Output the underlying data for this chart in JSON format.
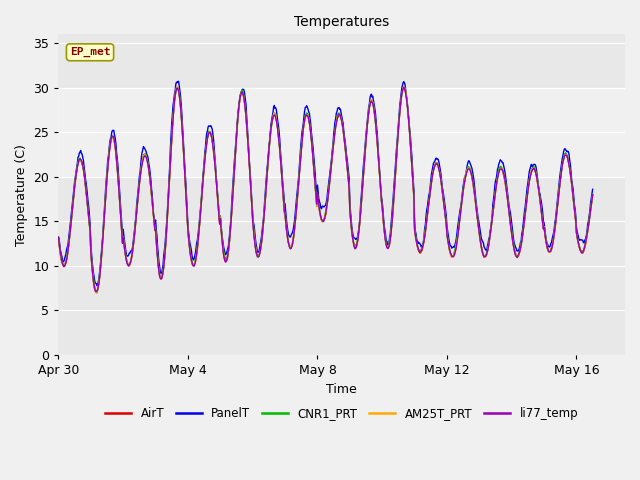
{
  "title": "Temperatures",
  "xlabel": "Time",
  "ylabel": "Temperature (C)",
  "ylim": [
    0,
    36
  ],
  "yticks": [
    0,
    5,
    10,
    15,
    20,
    25,
    30,
    35
  ],
  "fig_facecolor": "#f0f0f0",
  "ax_facecolor": "#e8e8e8",
  "series": {
    "AirT": {
      "color": "#dd0000",
      "lw": 1.0
    },
    "PanelT": {
      "color": "#0000ee",
      "lw": 1.0
    },
    "CNR1_PRT": {
      "color": "#00bb00",
      "lw": 1.0
    },
    "AM25T_PRT": {
      "color": "#ffaa00",
      "lw": 1.0
    },
    "li77_temp": {
      "color": "#9900bb",
      "lw": 1.0
    }
  },
  "annotation": {
    "text": "EP_met",
    "fontsize": 8,
    "color": "#880000",
    "bbox_fc": "#ffffcc",
    "bbox_ec": "#999900"
  },
  "xtick_labels": [
    "Apr 30",
    "May 4",
    "May 8",
    "May 12",
    "May 16"
  ],
  "xtick_pos": [
    0,
    4,
    8,
    12,
    16
  ],
  "xlim": [
    0,
    17.5
  ],
  "day_peaks": [
    22,
    24.5,
    22.5,
    30,
    25,
    29.5,
    27,
    27,
    27,
    28.5,
    30,
    21.5,
    21,
    21,
    21,
    22.5
  ],
  "day_mins": [
    10,
    7,
    10,
    8.5,
    10,
    10.5,
    11,
    12,
    15,
    12,
    12,
    11.5,
    11,
    11,
    11,
    11.5
  ],
  "n_per_day": 48
}
